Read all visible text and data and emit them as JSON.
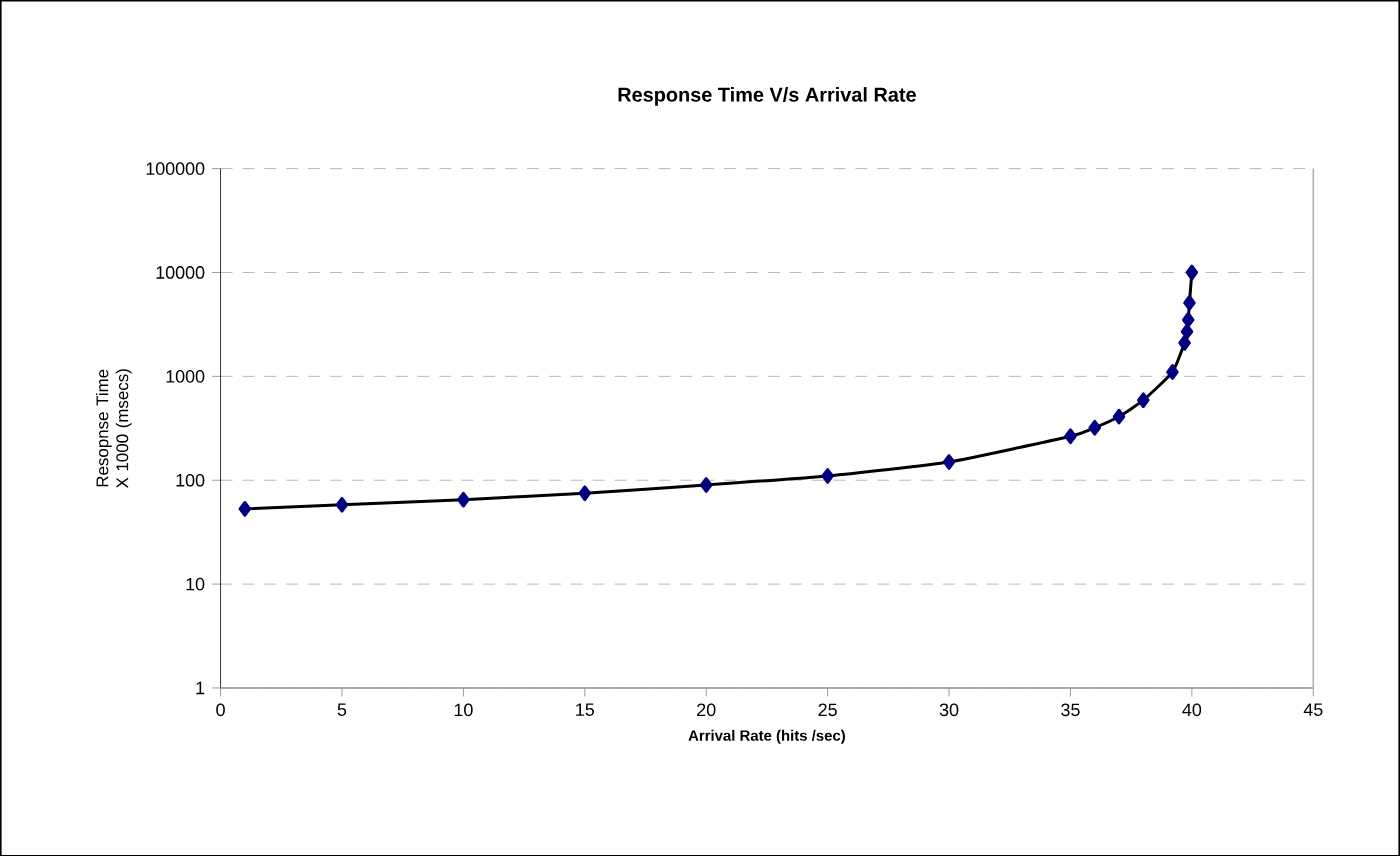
{
  "chart_data": {
    "type": "line",
    "title": "Response Time V/s Arrival Rate",
    "xlabel": "Arrival Rate (hits /sec)",
    "ylabel": "Resopnse Time X 1000 (msecs)",
    "log": "y",
    "grid": "y",
    "marker": "diamond",
    "line_style": "solid",
    "x": [
      1,
      5,
      10,
      15,
      20,
      25,
      30,
      35,
      36,
      37,
      38,
      39.2,
      39.7,
      39.8,
      39.85,
      39.9,
      40
    ],
    "series": [
      {
        "color": "#000080",
        "values": [
          53,
          58,
          65,
          75,
          90,
          110,
          150,
          265,
          320,
          410,
          590,
          1100,
          2100,
          2700,
          3500,
          5100,
          10000
        ]
      }
    ],
    "xlim": [
      0,
      45
    ],
    "xticks": [
      0,
      5,
      10,
      15,
      20,
      25,
      30,
      35,
      40,
      45
    ],
    "ylim": [
      1,
      100000
    ],
    "yticks": [
      1,
      10,
      100,
      1000,
      10000,
      100000
    ]
  }
}
